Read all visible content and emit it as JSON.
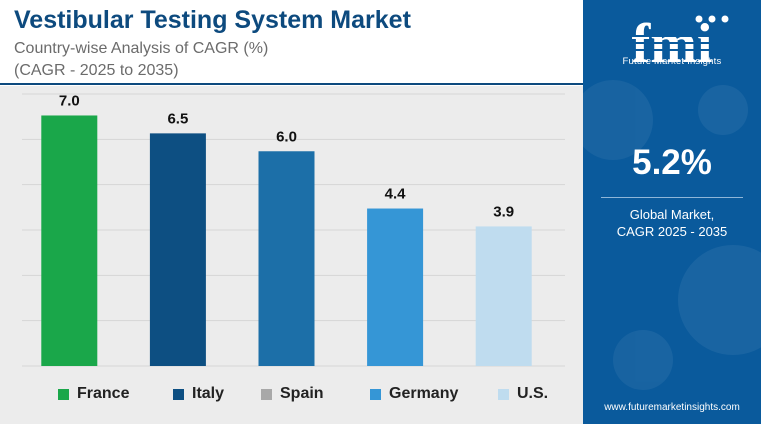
{
  "header": {
    "title": "Vestibular Testing System Market",
    "subtitle_line1": "Country-wise Analysis of CAGR (%)",
    "subtitle_line2": "(CAGR - 2025 to 2035)"
  },
  "chart_data": {
    "type": "bar",
    "categories": [
      "France",
      "Italy",
      "Spain",
      "Germany",
      "U.S."
    ],
    "values": [
      7.0,
      6.5,
      6.0,
      4.4,
      3.9
    ],
    "value_labels": [
      "7.0",
      "6.5",
      "6.0",
      "4.4",
      "3.9"
    ],
    "colors": [
      "#1aa74a",
      "#0d4f82",
      "#1c6fa8",
      "#3596d6",
      "#bfdcef"
    ],
    "legend_colors": [
      "#1aa74a",
      "#0d4f82",
      "#a8a8a8",
      "#3596d6",
      "#bfdcef"
    ],
    "ylim": [
      0,
      7.6
    ],
    "grid": true,
    "legend_position": "bottom"
  },
  "sidebar": {
    "logo_letters": "fmi",
    "logo_text": "Future Market Insights",
    "headline_value": "5.2%",
    "label_line1": "Global Market,",
    "label_line2": "CAGR 2025 - 2035",
    "website": "www.futuremarketinsights.com",
    "background_color": "#0a5a9c"
  }
}
